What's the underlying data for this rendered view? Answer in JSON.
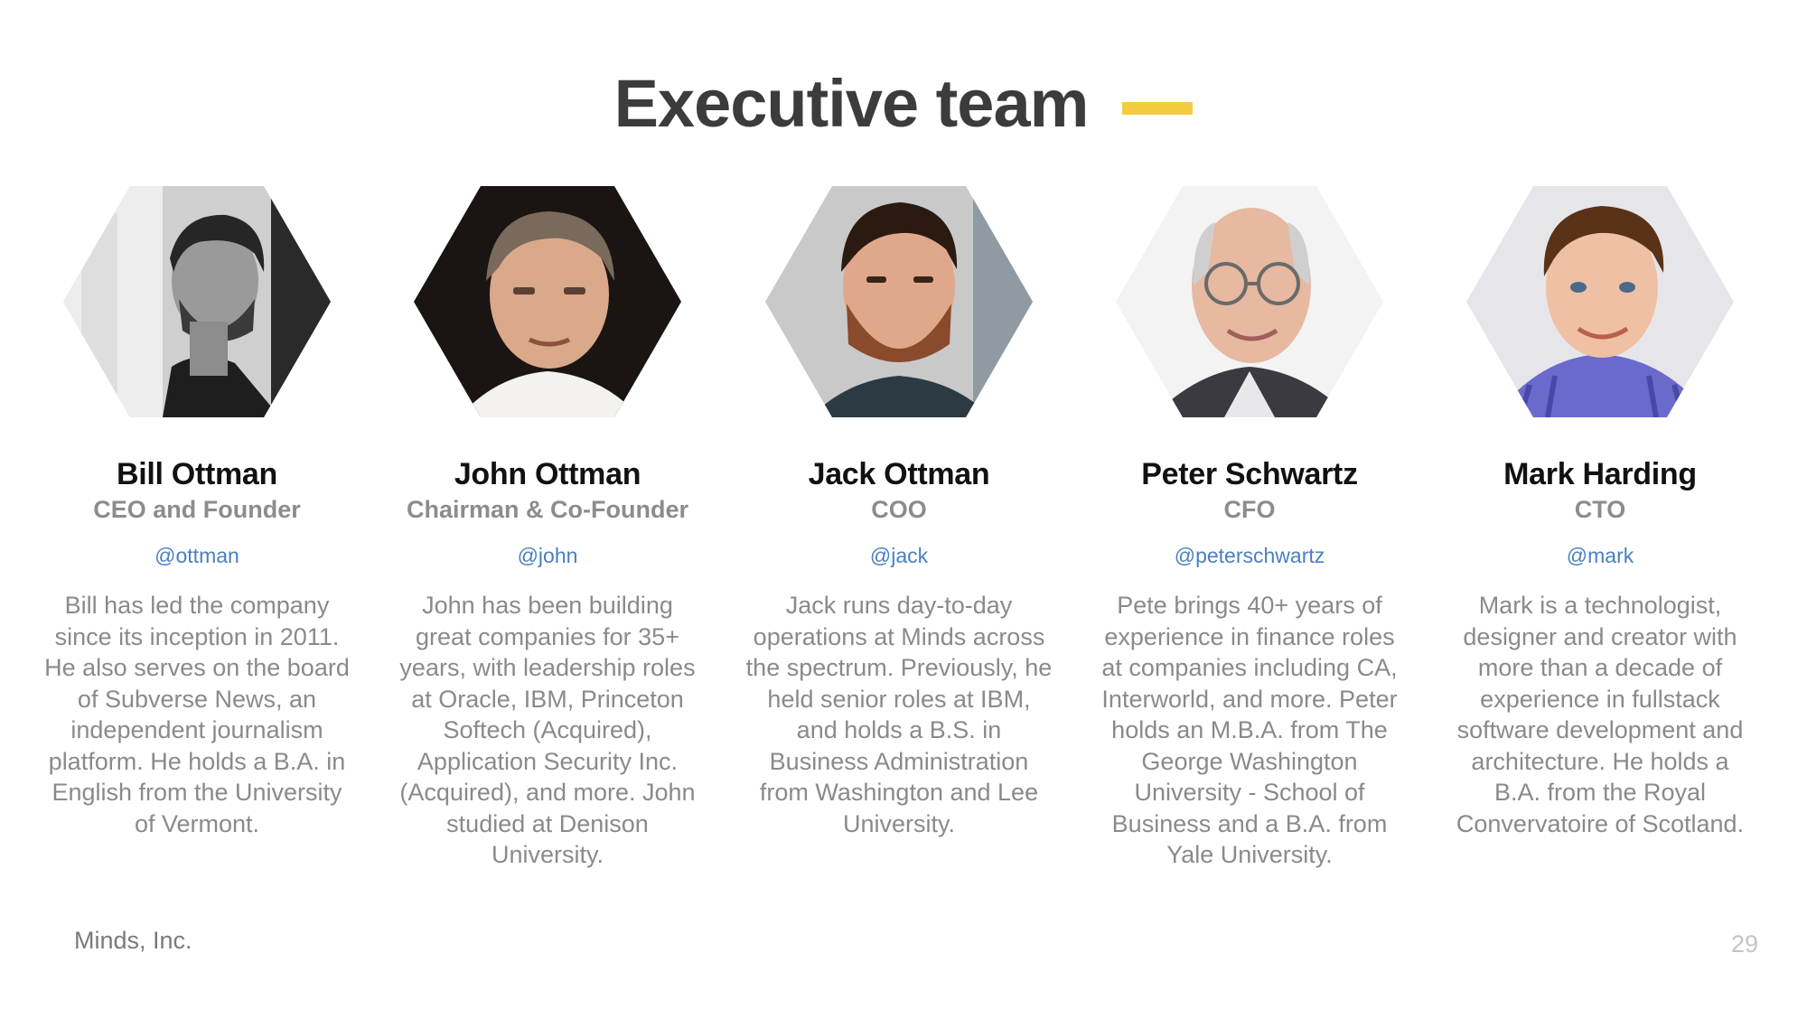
{
  "slide": {
    "title": "Executive team",
    "accent_color": "#f2cc3f",
    "footer": "Minds, Inc.",
    "page_number": "29"
  },
  "team": [
    {
      "name": "Bill Ottman",
      "role": "CEO and Founder",
      "handle": "@ottman",
      "bio": "Bill has led the company since its inception in 2011. He also serves on the board of Subverse News, an independent journalism platform. He holds a B.A. in English from the University of Vermont."
    },
    {
      "name": "John Ottman",
      "role": "Chairman & Co-Founder",
      "handle": "@john",
      "bio": "John has been building great companies for 35+ years, with leadership roles at Oracle, IBM, Princeton Softech (Acquired), Application Security Inc. (Acquired), and more. John studied at Denison University."
    },
    {
      "name": "Jack Ottman",
      "role": "COO",
      "handle": "@jack",
      "bio": "Jack runs day-to-day operations at Minds across the spectrum. Previously, he held senior roles at IBM, and holds a B.S. in Business Administration from Washington and Lee University."
    },
    {
      "name": "Peter Schwartz",
      "role": "CFO",
      "handle": "@peterschwartz",
      "bio": "Pete brings 40+ years of experience in finance roles at companies including CA, Interworld, and more. Peter holds an M.B.A. from The George Washington University - School of Business and a B.A. from Yale University."
    },
    {
      "name": "Mark Harding",
      "role": "CTO",
      "handle": "@mark",
      "bio": "Mark is a technologist, designer and creator with more than a decade of experience in fullstack software development and architecture. He holds a B.A. from the Royal Convervatoire of Scotland."
    }
  ]
}
